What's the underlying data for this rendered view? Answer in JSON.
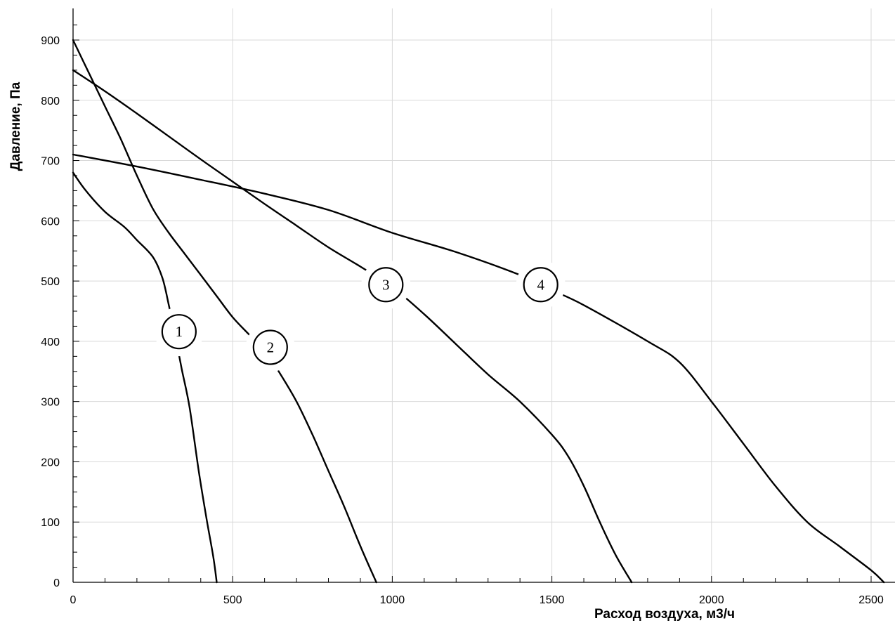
{
  "chart_data": {
    "type": "line",
    "xlabel": "Расход воздуха, м3/ч",
    "ylabel": "Давление, Па",
    "xlim": [
      0,
      2550
    ],
    "ylim": [
      0,
      930
    ],
    "x_ticks": [
      0,
      500,
      1000,
      1500,
      2000,
      2500
    ],
    "y_ticks": [
      0,
      100,
      200,
      300,
      400,
      500,
      600,
      700,
      800,
      900
    ],
    "grid": true,
    "series": [
      {
        "name": "1",
        "points": [
          [
            0,
            680
          ],
          [
            40,
            650
          ],
          [
            100,
            615
          ],
          [
            160,
            590
          ],
          [
            200,
            568
          ],
          [
            250,
            540
          ],
          [
            280,
            505
          ],
          [
            300,
            460
          ],
          [
            320,
            410
          ],
          [
            340,
            355
          ],
          [
            365,
            290
          ],
          [
            395,
            180
          ],
          [
            420,
            100
          ],
          [
            440,
            40
          ],
          [
            450,
            0
          ]
        ],
        "label_at": [
          332,
          416
        ]
      },
      {
        "name": "2",
        "points": [
          [
            0,
            900
          ],
          [
            50,
            845
          ],
          [
            100,
            790
          ],
          [
            150,
            735
          ],
          [
            200,
            675
          ],
          [
            250,
            620
          ],
          [
            300,
            580
          ],
          [
            350,
            545
          ],
          [
            400,
            510
          ],
          [
            450,
            475
          ],
          [
            500,
            440
          ],
          [
            550,
            412
          ],
          [
            600,
            385
          ],
          [
            650,
            345
          ],
          [
            700,
            300
          ],
          [
            750,
            245
          ],
          [
            800,
            185
          ],
          [
            850,
            125
          ],
          [
            900,
            60
          ],
          [
            950,
            0
          ]
        ],
        "label_at": [
          618,
          390
        ]
      },
      {
        "name": "3",
        "points": [
          [
            0,
            850
          ],
          [
            100,
            815
          ],
          [
            200,
            778
          ],
          [
            300,
            740
          ],
          [
            400,
            702
          ],
          [
            500,
            665
          ],
          [
            600,
            628
          ],
          [
            700,
            592
          ],
          [
            800,
            556
          ],
          [
            900,
            524
          ],
          [
            1000,
            490
          ],
          [
            1100,
            445
          ],
          [
            1200,
            395
          ],
          [
            1300,
            345
          ],
          [
            1400,
            300
          ],
          [
            1500,
            245
          ],
          [
            1550,
            210
          ],
          [
            1600,
            160
          ],
          [
            1650,
            100
          ],
          [
            1700,
            45
          ],
          [
            1750,
            0
          ]
        ],
        "label_at": [
          980,
          494
        ]
      },
      {
        "name": "4",
        "points": [
          [
            0,
            710
          ],
          [
            200,
            690
          ],
          [
            400,
            668
          ],
          [
            600,
            645
          ],
          [
            800,
            618
          ],
          [
            1000,
            580
          ],
          [
            1200,
            548
          ],
          [
            1400,
            510
          ],
          [
            1500,
            485
          ],
          [
            1600,
            460
          ],
          [
            1800,
            400
          ],
          [
            1900,
            365
          ],
          [
            2000,
            300
          ],
          [
            2100,
            230
          ],
          [
            2200,
            160
          ],
          [
            2300,
            100
          ],
          [
            2400,
            60
          ],
          [
            2500,
            20
          ],
          [
            2540,
            0
          ]
        ],
        "label_at": [
          1465,
          494
        ]
      }
    ]
  }
}
